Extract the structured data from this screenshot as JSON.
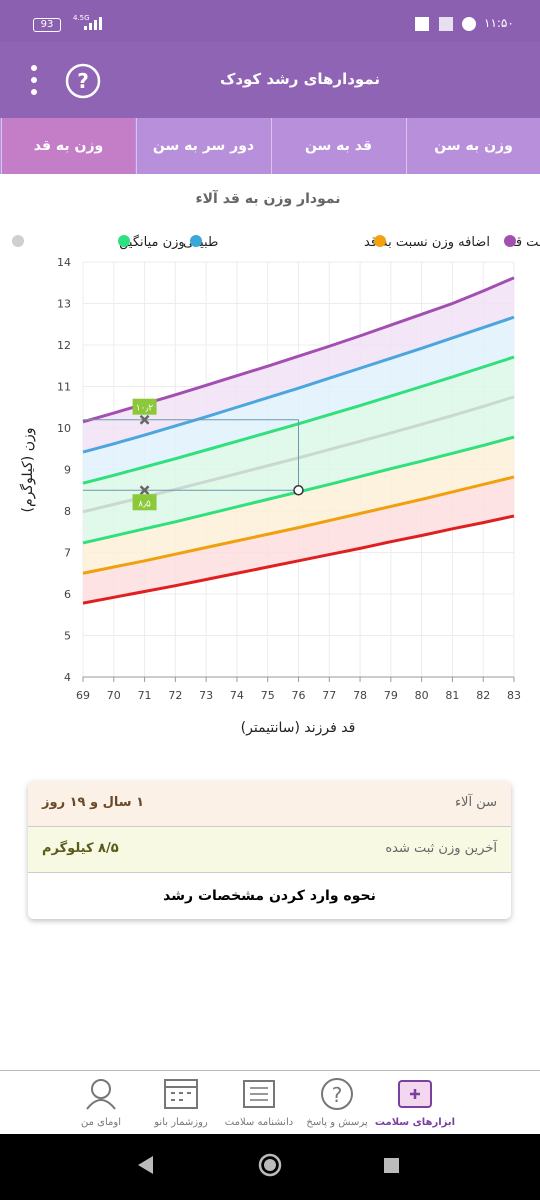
{
  "status_bar": {
    "battery": "93",
    "network": "4.5G",
    "time": "۱۱:۵۰"
  },
  "header": {
    "title": "نمودارهای رشد کودک"
  },
  "tabs": {
    "items": [
      "وزن به سن",
      "قد به سن",
      "دور سر به سن",
      "وزن به قد"
    ],
    "active": 3
  },
  "chart_data": {
    "type": "line",
    "title": "نمودار وزن به قد آلاء",
    "x_label": "قد فرزند (سانتیمتر)",
    "y_label": "وزن (کیلوگرم)",
    "x": [
      69,
      70,
      71,
      72,
      73,
      74,
      75,
      76,
      77,
      78,
      79,
      80,
      81,
      82,
      83
    ],
    "xlim": [
      69,
      83
    ],
    "xticks": [
      69,
      70,
      71,
      72,
      73,
      74,
      75,
      76,
      77,
      78,
      79,
      80,
      81,
      82,
      83
    ],
    "ylim": [
      4,
      14
    ],
    "yticks": [
      4,
      5,
      6,
      7,
      8,
      9,
      10,
      11,
      12,
      13,
      14
    ],
    "grid": true,
    "legend": [
      {
        "name": "وزن میانگین",
        "color": "#cfcfcf"
      },
      {
        "name": "طبیعی",
        "color": "#2ee07f"
      },
      {
        "name": "اضافه وزن نسبت به قد",
        "color": "#3aa8d8"
      },
      {
        "name": "کمبود وزن نسبت قد",
        "color": "#f2a20e"
      },
      {
        "color": "#a24fb1"
      }
    ],
    "series": [
      {
        "color": "#a24fb1",
        "values": [
          10.15,
          10.36,
          10.58,
          10.8,
          11.03,
          11.26,
          11.49,
          11.73,
          11.97,
          12.22,
          12.48,
          12.74,
          13.0,
          13.3,
          13.62
        ]
      },
      {
        "color": "#4aa6dd",
        "values": [
          9.42,
          9.62,
          9.83,
          10.05,
          10.27,
          10.5,
          10.73,
          10.96,
          11.2,
          11.44,
          11.68,
          11.92,
          12.17,
          12.42,
          12.67
        ]
      },
      {
        "color": "#2fe07d",
        "values": [
          8.67,
          8.86,
          9.06,
          9.26,
          9.47,
          9.68,
          9.89,
          10.1,
          10.32,
          10.54,
          10.77,
          11.0,
          11.23,
          11.47,
          11.71
        ]
      },
      {
        "color": "#c9d9d2",
        "values": [
          7.98,
          8.16,
          8.34,
          8.52,
          8.71,
          8.9,
          9.09,
          9.28,
          9.48,
          9.68,
          9.88,
          10.09,
          10.3,
          10.52,
          10.75
        ]
      },
      {
        "color": "#2fe07d",
        "values": [
          7.23,
          7.4,
          7.57,
          7.74,
          7.92,
          8.1,
          8.28,
          8.46,
          8.64,
          8.83,
          9.02,
          9.2,
          9.39,
          9.58,
          9.78
        ]
      },
      {
        "color": "#f0a00c",
        "values": [
          6.5,
          6.65,
          6.8,
          6.96,
          7.12,
          7.28,
          7.44,
          7.6,
          7.77,
          7.94,
          8.11,
          8.28,
          8.46,
          8.64,
          8.82
        ]
      },
      {
        "color": "#e02020",
        "values": [
          5.78,
          5.92,
          6.06,
          6.2,
          6.35,
          6.5,
          6.65,
          6.8,
          6.95,
          7.1,
          7.26,
          7.41,
          7.57,
          7.72,
          7.88
        ]
      }
    ],
    "band_fills": [
      "#f1e2f6",
      "#e0f1fb",
      "#dcf8e8",
      "#dcf8e8",
      "#fdf0d8",
      "#fddede"
    ],
    "points": [
      {
        "x": 71,
        "y": 10.2,
        "label": "۱۰٫۲"
      },
      {
        "x": 71,
        "y": 8.5,
        "label": "۸٫۵"
      }
    ],
    "current": {
      "x": 76,
      "y": 8.5
    }
  },
  "info": {
    "rows": [
      {
        "label": "سن آلاء",
        "value": "۱ سال و ۱۹ روز"
      },
      {
        "label": "آخرین وزن ثبت شده",
        "value": "۸/۵ کیلوگرم"
      }
    ],
    "button": "نحوه وارد کردن مشخصات رشد"
  },
  "bottom_nav": {
    "items": [
      "ابزارهای سلامت",
      "پرسش و پاسخ",
      "دانشنامه سلامت",
      "روزشمار بانو",
      "اومای من"
    ],
    "active": 0
  }
}
